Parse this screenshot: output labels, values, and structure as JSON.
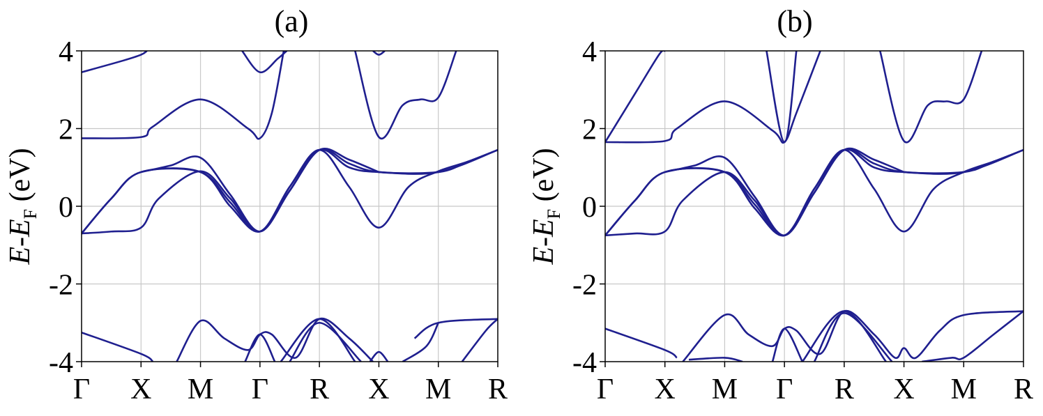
{
  "chart_data": [
    {
      "type": "line",
      "title": "(a)",
      "ylabel": {
        "main": "E",
        "sep": "-",
        "sub_main": "E",
        "subscript": "F",
        "unit": " (eV)"
      },
      "ylim": [
        -4,
        4
      ],
      "yticks": [
        -4,
        -2,
        0,
        2,
        4
      ],
      "ytick_labels": [
        "-4",
        "-2",
        "0",
        "2",
        "4"
      ],
      "grid": true,
      "line_color": "#1f1f8f",
      "kpath": [
        0,
        1,
        2,
        3,
        4,
        5,
        6,
        7
      ],
      "kpath_labels": [
        "Γ",
        "X",
        "M",
        "Γ",
        "R",
        "X",
        "M",
        "R"
      ],
      "series": [
        {
          "x": [
            0,
            0.5,
            1,
            1.3,
            2,
            2.5,
            3,
            3.5,
            4,
            4.5,
            5,
            5.5,
            6,
            6.5,
            7
          ],
          "y": [
            -0.7,
            -0.65,
            -0.55,
            0.2,
            0.9,
            0.2,
            -0.65,
            0.5,
            1.45,
            0.5,
            -0.55,
            0.5,
            0.9,
            1.15,
            1.45
          ]
        },
        {
          "x": [
            0,
            0.5,
            1,
            2,
            2.5,
            3,
            3.5,
            4,
            4.5,
            5,
            6,
            7
          ],
          "y": [
            -0.7,
            0.2,
            0.88,
            0.88,
            0.1,
            -0.65,
            0.5,
            1.45,
            1.0,
            0.88,
            0.88,
            1.45
          ]
        },
        {
          "x": [
            0,
            0.5,
            1,
            2,
            2.5,
            3,
            3.5,
            4,
            4.5,
            5,
            6,
            6.5,
            7
          ],
          "y": [
            -0.7,
            0.2,
            0.88,
            0.88,
            0.0,
            -0.65,
            0.4,
            1.45,
            1.1,
            0.88,
            0.88,
            1.15,
            1.45
          ]
        },
        {
          "x": [
            1,
            1.5,
            2,
            2.5,
            3,
            3.5,
            4,
            4.5,
            5
          ],
          "y": [
            0.88,
            1.05,
            1.25,
            0.3,
            -0.65,
            0.4,
            1.45,
            1.2,
            0.88
          ]
        },
        {
          "x": [
            0,
            1,
            1.2,
            2,
            2.8,
            3,
            3.2,
            3.4
          ],
          "y": [
            1.75,
            1.78,
            2.05,
            2.75,
            2.0,
            1.75,
            2.4,
            4.0
          ]
        },
        {
          "x": [
            0,
            0.7,
            1,
            1.1
          ],
          "y": [
            3.45,
            3.75,
            3.9,
            4.0
          ]
        },
        {
          "x": [
            2.7,
            3,
            3.3,
            3.45
          ],
          "y": [
            4.0,
            3.45,
            3.8,
            4.0
          ]
        },
        {
          "x": [
            4.6,
            5,
            5.4,
            5.7,
            6,
            6.3
          ],
          "y": [
            4.0,
            1.78,
            2.6,
            2.75,
            2.8,
            4.0
          ]
        },
        {
          "x": [
            4.9,
            5,
            5.1
          ],
          "y": [
            4.0,
            3.9,
            4.0
          ]
        },
        {
          "x": [
            0,
            1,
            1.2
          ],
          "y": [
            -3.25,
            -3.8,
            -4.0
          ]
        },
        {
          "x": [
            1.6,
            2,
            2.4,
            2.8,
            3,
            3.2,
            3.6,
            4,
            4.5,
            4.9
          ],
          "y": [
            -4.0,
            -2.95,
            -3.4,
            -3.7,
            -3.3,
            -3.3,
            -3.9,
            -2.9,
            -3.4,
            -4.0
          ]
        },
        {
          "x": [
            2.75,
            3,
            3.25
          ],
          "y": [
            -4.0,
            -3.3,
            -4.0
          ]
        },
        {
          "x": [
            3.35,
            4,
            4.6
          ],
          "y": [
            -4.0,
            -2.9,
            -4.0
          ]
        },
        {
          "x": [
            3.5,
            4,
            4.7
          ],
          "y": [
            -4.0,
            -3.0,
            -4.0
          ]
        },
        {
          "x": [
            4.85,
            5,
            5.15
          ],
          "y": [
            -4.0,
            -3.75,
            -4.0
          ]
        },
        {
          "x": [
            5.6,
            6,
            7
          ],
          "y": [
            -3.4,
            -3.0,
            -2.9
          ]
        },
        {
          "x": [
            5.4,
            5.8,
            6
          ],
          "y": [
            -4.0,
            -3.6,
            -3.0
          ]
        },
        {
          "x": [
            6.4,
            6.8,
            7
          ],
          "y": [
            -4.0,
            -3.2,
            -2.9
          ]
        }
      ]
    },
    {
      "type": "line",
      "title": "(b)",
      "ylabel": {
        "main": "E",
        "sep": "-",
        "sub_main": "E",
        "subscript": "F",
        "unit": " (eV)"
      },
      "ylim": [
        -4,
        4
      ],
      "yticks": [
        -4,
        -2,
        0,
        2,
        4
      ],
      "ytick_labels": [
        "-4",
        "-2",
        "0",
        "2",
        "4"
      ],
      "grid": true,
      "line_color": "#1f1f8f",
      "kpath": [
        0,
        1,
        2,
        3,
        4,
        5,
        6,
        7
      ],
      "kpath_labels": [
        "Γ",
        "X",
        "M",
        "Γ",
        "R",
        "X",
        "M",
        "R"
      ],
      "series": [
        {
          "x": [
            0,
            0.5,
            1,
            1.3,
            2,
            2.5,
            3,
            3.5,
            4,
            4.5,
            5,
            5.5,
            6,
            6.5,
            7
          ],
          "y": [
            -0.75,
            -0.7,
            -0.65,
            0.15,
            0.88,
            0.15,
            -0.75,
            0.45,
            1.45,
            0.45,
            -0.65,
            0.45,
            0.88,
            1.15,
            1.45
          ]
        },
        {
          "x": [
            0,
            0.5,
            1,
            2,
            2.5,
            3,
            3.5,
            4,
            4.5,
            5,
            6,
            7
          ],
          "y": [
            -0.75,
            0.15,
            0.88,
            0.88,
            0.05,
            -0.75,
            0.45,
            1.45,
            1.0,
            0.88,
            0.88,
            1.45
          ]
        },
        {
          "x": [
            0,
            0.5,
            1,
            2,
            2.5,
            3,
            3.5,
            4,
            4.5,
            5,
            6,
            6.5,
            7
          ],
          "y": [
            -0.75,
            0.15,
            0.88,
            0.88,
            -0.05,
            -0.75,
            0.35,
            1.45,
            1.1,
            0.88,
            0.88,
            1.15,
            1.45
          ]
        },
        {
          "x": [
            1,
            1.5,
            2,
            2.5,
            3,
            3.5,
            4,
            4.5,
            5
          ],
          "y": [
            0.88,
            1.05,
            1.25,
            0.25,
            -0.75,
            0.35,
            1.45,
            1.2,
            0.88
          ]
        },
        {
          "x": [
            0,
            1,
            1.2,
            2,
            2.8,
            3,
            3.2,
            3.6
          ],
          "y": [
            1.65,
            1.68,
            2.0,
            2.7,
            1.95,
            1.65,
            2.4,
            4.0
          ]
        },
        {
          "x": [
            0,
            0.5,
            0.9,
            1
          ],
          "y": [
            1.65,
            2.9,
            3.9,
            4.0
          ]
        },
        {
          "x": [
            2.7,
            3,
            3.2
          ],
          "y": [
            4.0,
            1.65,
            4.0
          ]
        },
        {
          "x": [
            4.6,
            5,
            5.4,
            5.7,
            6,
            6.3
          ],
          "y": [
            4.0,
            1.68,
            2.6,
            2.7,
            2.75,
            4.0
          ]
        },
        {
          "x": [
            0,
            1,
            1.2
          ],
          "y": [
            -3.15,
            -3.7,
            -3.9
          ]
        },
        {
          "x": [
            1.3,
            2,
            2.4,
            2.8,
            3,
            3.2,
            3.6,
            4,
            4.5,
            4.85,
            5,
            5.2,
            5.6,
            6,
            7
          ],
          "y": [
            -4.0,
            -2.8,
            -3.3,
            -3.6,
            -3.15,
            -3.2,
            -3.8,
            -2.7,
            -3.3,
            -3.9,
            -3.65,
            -3.9,
            -3.2,
            -2.8,
            -2.7
          ]
        },
        {
          "x": [
            1.4,
            2,
            2.3
          ],
          "y": [
            -3.95,
            -3.9,
            -4.0
          ]
        },
        {
          "x": [
            2.8,
            3,
            3.3
          ],
          "y": [
            -4.0,
            -3.15,
            -4.0
          ]
        },
        {
          "x": [
            3.3,
            4,
            4.7
          ],
          "y": [
            -4.0,
            -2.7,
            -4.0
          ]
        },
        {
          "x": [
            3.5,
            4,
            4.8
          ],
          "y": [
            -4.0,
            -2.75,
            -4.0
          ]
        },
        {
          "x": [
            5.3,
            5.8,
            6,
            6.5,
            7
          ],
          "y": [
            -4.0,
            -3.9,
            -3.9,
            -3.3,
            -2.7
          ]
        }
      ]
    }
  ]
}
